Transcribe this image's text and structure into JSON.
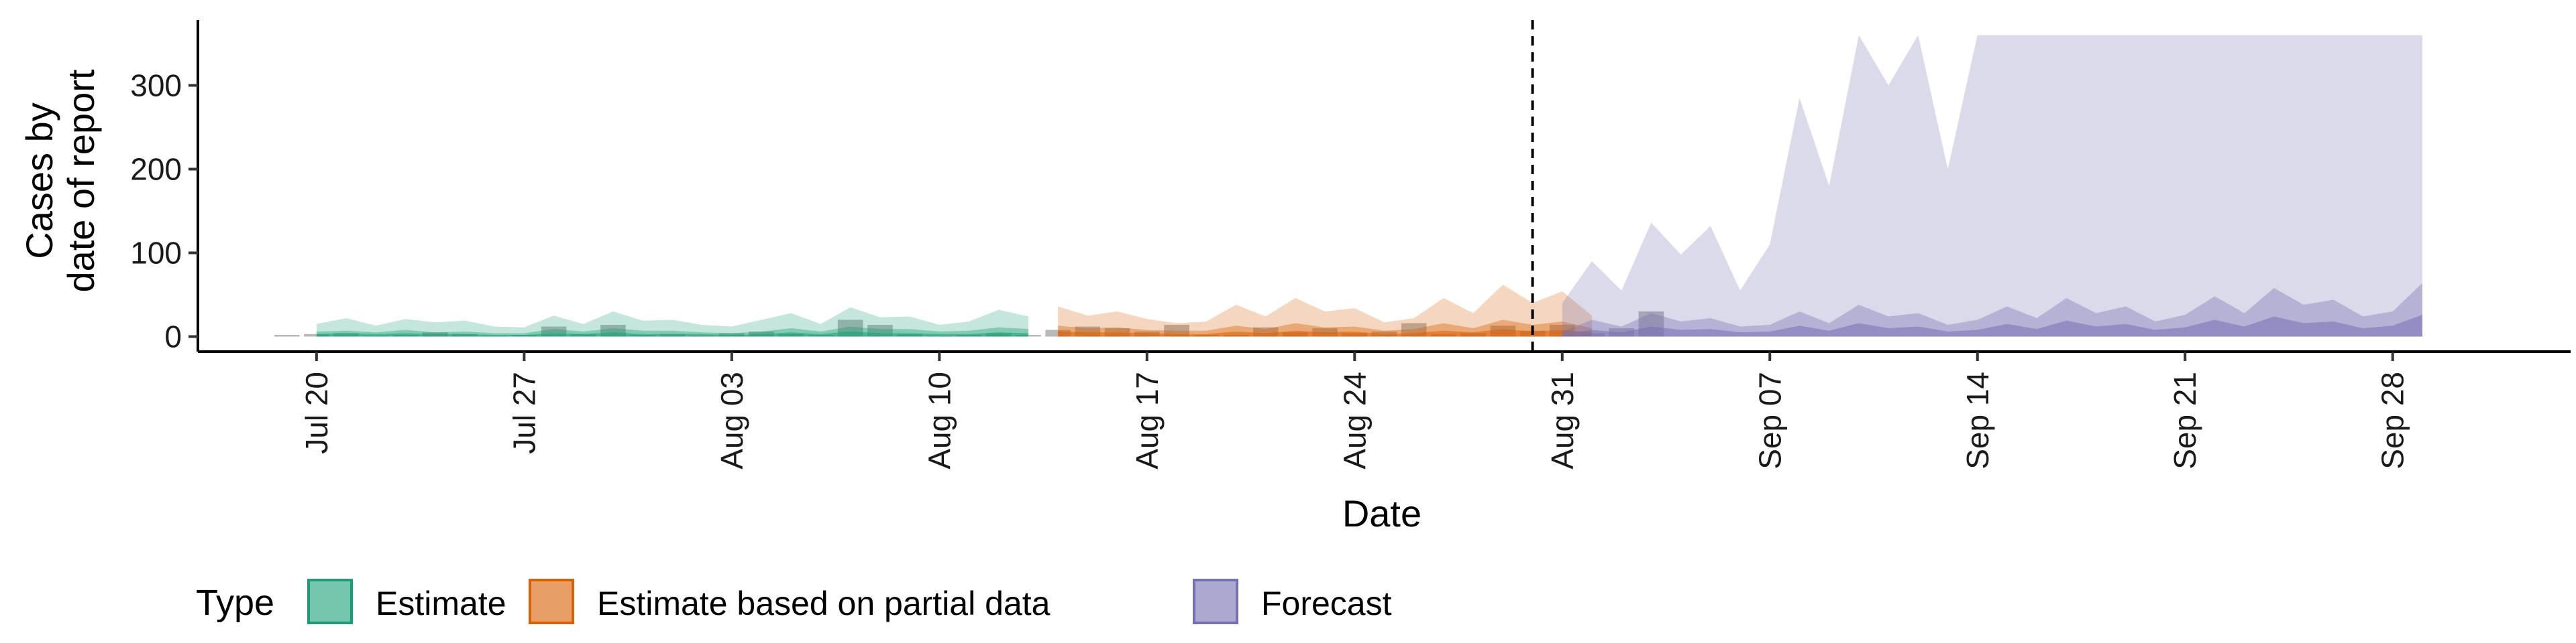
{
  "chart_data": {
    "type": "area",
    "xlabel": "Date",
    "ylabel_lines": [
      "Cases by",
      "date of report"
    ],
    "x_tick_labels": [
      "Jul 20",
      "Jul 27",
      "Aug 03",
      "Aug 10",
      "Aug 17",
      "Aug 24",
      "Aug 31",
      "Sep 07",
      "Sep 14",
      "Sep 21",
      "Sep 28"
    ],
    "x_tick_dates": [
      "2020-07-20",
      "2020-07-27",
      "2020-08-03",
      "2020-08-10",
      "2020-08-17",
      "2020-08-24",
      "2020-08-31",
      "2020-09-07",
      "2020-09-14",
      "2020-09-21",
      "2020-09-28"
    ],
    "xlim": [
      "2020-07-16",
      "2020-10-04"
    ],
    "y_ticks": [
      0,
      100,
      200,
      300
    ],
    "ylim": [
      -18,
      378
    ],
    "vline_date": "2020-08-30",
    "legend": {
      "title": "Type",
      "position": "bottom",
      "items": [
        {
          "label": "Estimate",
          "color": "#1b9e77"
        },
        {
          "label": "Estimate based on partial data",
          "color": "#d95f02"
        },
        {
          "label": "Forecast",
          "color": "#7570b3"
        }
      ]
    },
    "series": [
      {
        "name": "Estimate",
        "color": "#1b9e77",
        "start": "2020-07-20",
        "upper90": [
          15,
          22,
          13,
          21,
          17,
          19,
          12,
          11,
          25,
          15,
          30,
          19,
          20,
          14,
          12,
          20,
          28,
          15,
          35,
          23,
          24,
          14,
          18,
          32,
          24
        ],
        "upper50": [
          6,
          7,
          5,
          8,
          5,
          6,
          4,
          4,
          9,
          6,
          10,
          7,
          7,
          5,
          4,
          6,
          10,
          6,
          12,
          9,
          9,
          6,
          7,
          11,
          9
        ],
        "median": [
          3,
          4,
          3,
          4,
          3,
          3,
          2,
          2,
          4,
          3,
          5,
          3,
          3,
          3,
          2,
          3,
          5,
          3,
          6,
          4,
          4,
          3,
          3,
          5,
          4
        ]
      },
      {
        "name": "Estimate based on partial data",
        "color": "#d95f02",
        "start": "2020-08-14",
        "upper90": [
          36,
          25,
          30,
          21,
          16,
          18,
          38,
          24,
          46,
          30,
          34,
          17,
          22,
          46,
          28,
          62,
          40,
          54,
          25
        ],
        "upper50": [
          13,
          10,
          11,
          8,
          7,
          7,
          13,
          9,
          16,
          11,
          12,
          7,
          9,
          16,
          10,
          20,
          14,
          18,
          10
        ],
        "median": [
          6,
          5,
          5,
          4,
          3,
          3,
          6,
          4,
          7,
          5,
          6,
          3,
          4,
          7,
          5,
          9,
          6,
          8,
          5
        ]
      },
      {
        "name": "Forecast",
        "color": "#7570b3",
        "start": "2020-08-31",
        "upper90": [
          40,
          90,
          55,
          136,
          98,
          132,
          55,
          110,
          285,
          180,
          360,
          300,
          360,
          200,
          360,
          360,
          360,
          360,
          360,
          360,
          360,
          360,
          360,
          360,
          360,
          360,
          360,
          360,
          360,
          360
        ],
        "upper50": [
          6,
          20,
          12,
          28,
          18,
          22,
          12,
          14,
          30,
          16,
          38,
          24,
          28,
          14,
          20,
          36,
          22,
          46,
          28,
          36,
          18,
          26,
          48,
          28,
          58,
          38,
          44,
          24,
          30,
          64
        ],
        "median": [
          3,
          8,
          5,
          12,
          8,
          9,
          5,
          6,
          13,
          7,
          16,
          10,
          12,
          6,
          8,
          15,
          9,
          19,
          12,
          15,
          8,
          11,
          20,
          12,
          24,
          16,
          18,
          10,
          13,
          26
        ]
      }
    ],
    "observed_bars": {
      "start": "2020-07-19",
      "values": [
        2,
        3,
        4,
        1,
        2,
        5,
        3,
        1,
        2,
        12,
        3,
        14,
        2,
        3,
        1,
        4,
        6,
        3,
        2,
        20,
        14,
        3,
        1,
        2,
        4,
        2,
        8,
        12,
        10,
        6,
        14,
        2,
        2,
        11,
        5,
        10,
        4,
        6,
        16,
        3,
        4,
        13,
        7,
        14,
        4,
        10,
        30
      ]
    }
  }
}
